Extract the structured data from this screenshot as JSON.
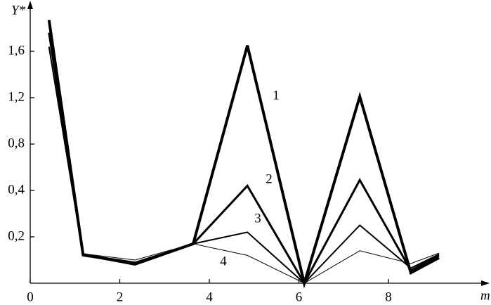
{
  "chart_data": {
    "type": "line",
    "y_label": "Y*",
    "x_label": "m",
    "x": [
      0.42,
      1.18,
      2.34,
      3.64,
      4.85,
      6.12,
      7.36,
      8.5,
      9.13
    ],
    "series": [
      {
        "name": "1",
        "color": "#000000",
        "width": 4,
        "values": [
          1.87,
          0.124,
          0.082,
          0.17,
          1.65,
          0,
          1.21,
          0.045,
          0.11
        ]
      },
      {
        "name": "2",
        "color": "#000000",
        "width": 3,
        "values": [
          1.76,
          0.12,
          0.085,
          0.17,
          0.44,
          0,
          0.49,
          0.055,
          0.12
        ]
      },
      {
        "name": "3",
        "color": "#000000",
        "width": 2,
        "values": [
          1.64,
          0.124,
          0.09,
          0.17,
          0.22,
          0,
          0.25,
          0.065,
          0.125
        ]
      },
      {
        "name": "4",
        "color": "#000000",
        "width": 1,
        "values": [
          1.62,
          0.127,
          0.1,
          0.17,
          0.12,
          0,
          0.14,
          0.085,
          0.13
        ]
      }
    ],
    "xlim": [
      0,
      10
    ],
    "xticks": [
      0,
      2,
      4,
      6,
      8
    ],
    "ylim": [
      0,
      1.9
    ],
    "yticks": [
      {
        "value": 0.2,
        "label": "0,2"
      },
      {
        "value": 0.4,
        "label": "0,4"
      },
      {
        "value": 0.8,
        "label": "0,8"
      },
      {
        "value": 1.2,
        "label": "1,2"
      },
      {
        "value": 1.6,
        "label": "1,6"
      }
    ],
    "yscale": "tick-spaced",
    "grid": false
  }
}
